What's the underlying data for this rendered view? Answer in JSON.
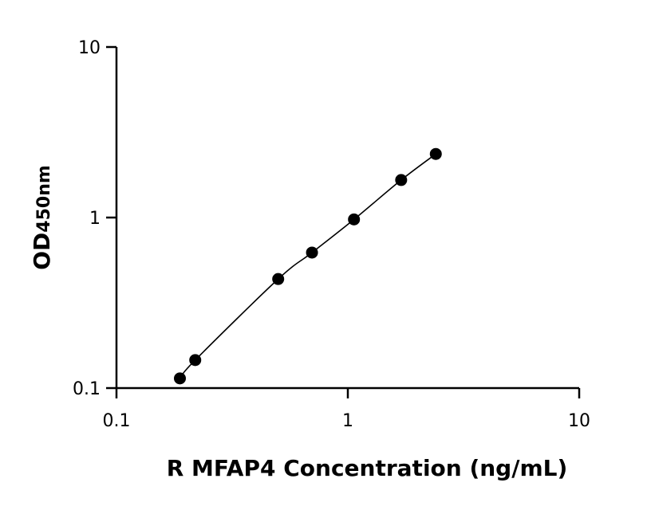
{
  "chart_data": {
    "type": "scatter",
    "xlabel": "R MFAP4 Concentration (ng/mL)",
    "ylabel": "OD",
    "ylabel_subscript": "450nm",
    "x_scale": "log",
    "y_scale": "log",
    "xlim": [
      0.1,
      10
    ],
    "ylim": [
      0.1,
      10
    ],
    "x_ticks": [
      "0.1",
      "1",
      "10"
    ],
    "y_ticks": [
      "0.1",
      "1",
      "10"
    ],
    "grid": false,
    "legend": "none",
    "marker_color": "#000000",
    "line_color": "#000000",
    "series": [
      {
        "x": [
          0.188,
          0.219,
          0.5,
          0.7,
          1.063,
          1.7,
          2.4
        ],
        "y": [
          0.114,
          0.146,
          0.436,
          0.623,
          0.975,
          1.66,
          2.36
        ],
        "fit": "curve"
      }
    ]
  }
}
